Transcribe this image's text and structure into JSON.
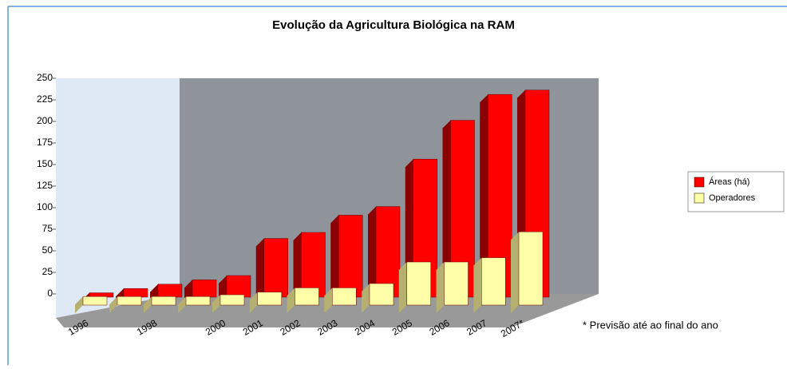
{
  "chart_data": {
    "type": "bar3d",
    "title": "Evolução da Agricultura Biológica na RAM",
    "categories": [
      "1996",
      null,
      "1998",
      null,
      "2000",
      "2001",
      "2002",
      "2003",
      "2004",
      "2005",
      "2006",
      "2007",
      "2007*"
    ],
    "series": [
      {
        "name": "Áreas (há)",
        "color": "#ff0000",
        "values": [
          5,
          10,
          15,
          20,
          25,
          68,
          75,
          95,
          105,
          160,
          205,
          235,
          240
        ]
      },
      {
        "name": "Operadores",
        "color": "#ffffa8",
        "values": [
          10,
          10,
          10,
          10,
          12,
          15,
          20,
          20,
          25,
          50,
          50,
          55,
          85
        ]
      }
    ],
    "ylim": [
      0,
      250
    ],
    "yticks": [
      0,
      25,
      50,
      75,
      100,
      125,
      150,
      175,
      200,
      225,
      250
    ],
    "annotation": "* Previsão até ao final do ano",
    "legend": "right"
  }
}
